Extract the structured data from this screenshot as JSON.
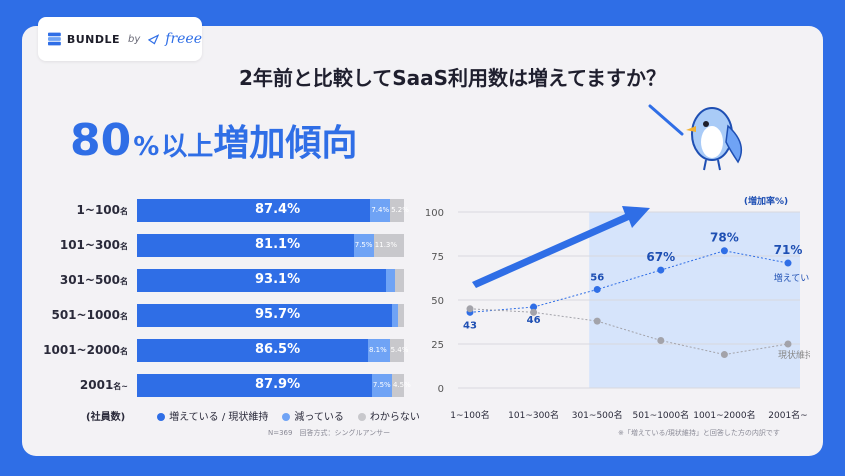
{
  "brand": {
    "name": "BUNDLE",
    "by": "by",
    "partner": "freee"
  },
  "title": "2年前と比較してSaaS利用数は増えてますか？",
  "headline": {
    "num": "80",
    "pct": "%",
    "text1": "以上",
    "text2": "増加傾向"
  },
  "colors": {
    "increase": "#2f6ee6",
    "decrease": "#6fa3f5",
    "unknown": "#c8c8cc",
    "maintain": "#a3a3aa"
  },
  "bar_chart": {
    "rows": [
      {
        "label": "1~100",
        "unit": "名",
        "inc": 87.4,
        "dec": 7.4,
        "unk": 5.2,
        "inc_label": "87.4%",
        "dec_label": "7.4%",
        "unk_label": "5.2%"
      },
      {
        "label": "101~300",
        "unit": "名",
        "inc": 81.1,
        "dec": 7.5,
        "unk": 11.3,
        "inc_label": "81.1%",
        "dec_label": "7.5%",
        "unk_label": "11.3%"
      },
      {
        "label": "301~500",
        "unit": "名",
        "inc": 93.1,
        "dec": 3.4,
        "unk": 3.4,
        "inc_label": "93.1%",
        "dec_label": "",
        "unk_label": ""
      },
      {
        "label": "501~1000",
        "unit": "名",
        "inc": 95.7,
        "dec": 2.2,
        "unk": 2.2,
        "inc_label": "95.7%",
        "dec_label": "",
        "unk_label": ""
      },
      {
        "label": "1001~2000",
        "unit": "名",
        "inc": 86.5,
        "dec": 8.1,
        "unk": 5.4,
        "inc_label": "86.5%",
        "dec_label": "8.1%",
        "unk_label": "5.4%"
      },
      {
        "label": "2001",
        "unit": "名~",
        "inc": 87.9,
        "dec": 7.5,
        "unk": 4.5,
        "inc_label": "87.9%",
        "dec_label": "7.5%",
        "unk_label": "4.5%"
      }
    ],
    "axis_label": "(社員数)",
    "legend": {
      "increase": "増えている / 現状維持",
      "decrease": "減っている",
      "unknown": "わからない"
    },
    "note": "N=369　回答方式：シングルアンサー"
  },
  "chart_data": {
    "type": "line",
    "ylabel": "(増加率%)",
    "ylim": [
      0,
      100
    ],
    "yticks": [
      0,
      25,
      50,
      75,
      100
    ],
    "categories": [
      "1~100名",
      "101~300名",
      "301~500名",
      "501~1000名",
      "1001~2000名",
      "2001名~"
    ],
    "series": [
      {
        "name": "増えている",
        "values": [
          43,
          46,
          56,
          67,
          78,
          71
        ],
        "labels": [
          "43",
          "46",
          "56",
          "67%",
          "78%",
          "71%"
        ]
      },
      {
        "name": "現状維持",
        "values": [
          45,
          43,
          38,
          27,
          19,
          25
        ]
      }
    ],
    "note": "※「増えている/現状維持」と回答した方の内訳です"
  }
}
